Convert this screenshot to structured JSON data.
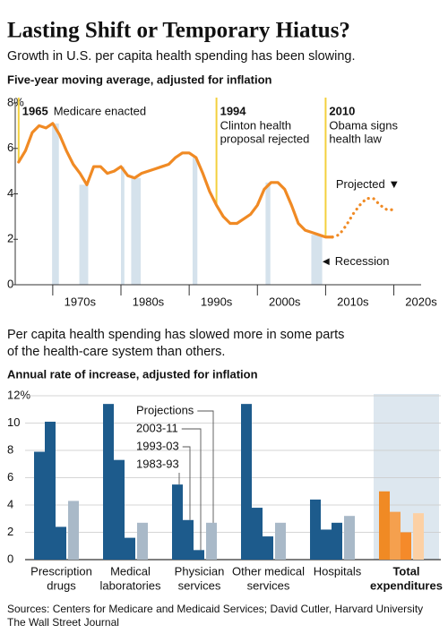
{
  "header": {
    "title": "Lasting Shift or Temporary Hiatus?",
    "subtitle": "Growth in U.S. per capita health spending has been slowing."
  },
  "chart_data": [
    {
      "type": "line",
      "subtitle": "Five-year moving average, adjusted for inflation",
      "x": [
        1965,
        1966,
        1967,
        1968,
        1969,
        1970,
        1971,
        1972,
        1973,
        1974,
        1975,
        1976,
        1977,
        1978,
        1979,
        1980,
        1981,
        1982,
        1983,
        1984,
        1985,
        1986,
        1987,
        1988,
        1989,
        1990,
        1991,
        1992,
        1993,
        1994,
        1995,
        1996,
        1997,
        1998,
        1999,
        2000,
        2001,
        2002,
        2003,
        2004,
        2005,
        2006,
        2007,
        2008,
        2009,
        2010,
        2011,
        2012,
        2013,
        2014,
        2015,
        2016,
        2017,
        2018,
        2019,
        2020
      ],
      "series": [
        {
          "color": "#f08a24",
          "style": "solid",
          "values": [
            5.4,
            5.9,
            6.7,
            7.0,
            6.9,
            7.1,
            6.6,
            5.9,
            5.3,
            4.9,
            4.4,
            5.2,
            5.2,
            4.9,
            5.0,
            5.2,
            4.8,
            4.7,
            4.9,
            5.0,
            5.1,
            5.2,
            5.3,
            5.6,
            5.8,
            5.8,
            5.6,
            4.9,
            4.1,
            3.5,
            3.0,
            2.7,
            2.7,
            2.9,
            3.1,
            3.5,
            4.2,
            4.5,
            4.5,
            4.2,
            3.5,
            2.7,
            2.4,
            2.3,
            2.2,
            2.1,
            2.1,
            null,
            null,
            null,
            null,
            null,
            null,
            null,
            null,
            null
          ]
        },
        {
          "name": "Projected ▼",
          "color": "#f08a24",
          "style": "dotted",
          "values": [
            null,
            null,
            null,
            null,
            null,
            null,
            null,
            null,
            null,
            null,
            null,
            null,
            null,
            null,
            null,
            null,
            null,
            null,
            null,
            null,
            null,
            null,
            null,
            null,
            null,
            null,
            null,
            null,
            null,
            null,
            null,
            null,
            null,
            null,
            null,
            null,
            null,
            null,
            null,
            null,
            null,
            null,
            null,
            null,
            null,
            null,
            2.1,
            2.2,
            2.6,
            3.1,
            3.5,
            3.8,
            3.8,
            3.5,
            3.3,
            3.3
          ]
        }
      ],
      "xlim": [
        1964.5,
        2024
      ],
      "ylim": [
        0,
        8
      ],
      "yticks": [
        0,
        2,
        4,
        6,
        {
          "value": 8,
          "label": "8%"
        }
      ],
      "xticks": [
        {
          "value": 1970,
          "label": "1970s"
        },
        {
          "value": 1980,
          "label": "1980s"
        },
        {
          "value": 1990,
          "label": "1990s"
        },
        {
          "value": 2000,
          "label": "2000s"
        },
        {
          "value": 2010,
          "label": "2010s"
        },
        {
          "value": 2020,
          "label": "2020s"
        }
      ],
      "grid": false,
      "annotation_color": "#f3d03e",
      "annotations": [
        {
          "x": 1965,
          "label": "1965",
          "text": [
            "Medicare enacted"
          ]
        },
        {
          "x": 1994,
          "label": "1994",
          "text": [
            "Clinton health",
            "proposal rejected"
          ]
        },
        {
          "x": 2010,
          "label": "2010",
          "text": [
            "Obama signs",
            "health law"
          ]
        }
      ],
      "recessions": {
        "label": "◄ Recession",
        "color": "#d5e2ec",
        "ranges": [
          [
            1969.9,
            1970.9
          ],
          [
            1973.9,
            1975.2
          ],
          [
            1980.0,
            1980.5
          ],
          [
            1981.5,
            1982.9
          ],
          [
            1990.5,
            1991.2
          ],
          [
            2001.2,
            2001.9
          ],
          [
            2007.9,
            2009.5
          ]
        ]
      }
    },
    {
      "type": "bar",
      "title": [
        "Per capita health spending has slowed more in some parts",
        "of the health-care system than others."
      ],
      "subtitle": "Annual rate of increase, adjusted for inflation",
      "categories": [
        [
          "Prescription",
          "drugs"
        ],
        [
          "Medical",
          "laboratories"
        ],
        [
          "Physician",
          "services"
        ],
        [
          "Other medical",
          "services"
        ],
        [
          "Hospitals"
        ],
        [
          "Total",
          "expenditures"
        ]
      ],
      "series": [
        {
          "name": "1983-93",
          "colors": [
            "#1d5b8c",
            "#1d5b8c",
            "#1d5b8c",
            "#1d5b8c",
            "#1d5b8c",
            "#f08a24"
          ],
          "values": [
            7.9,
            11.4,
            5.5,
            11.4,
            4.4,
            5.0
          ]
        },
        {
          "name": "1993-03",
          "colors": [
            "#1d5b8c",
            "#1d5b8c",
            "#1d5b8c",
            "#1d5b8c",
            "#1d5b8c",
            "#f5a04e"
          ],
          "values": [
            10.1,
            7.3,
            2.9,
            3.8,
            2.2,
            3.5
          ]
        },
        {
          "name": "2003-11",
          "colors": [
            "#1d5b8c",
            "#1d5b8c",
            "#1d5b8c",
            "#1d5b8c",
            "#1d5b8c",
            "#f58a2a"
          ],
          "values": [
            2.4,
            1.6,
            0.7,
            1.7,
            2.7,
            2.0
          ]
        },
        {
          "name": "Projections",
          "colors": [
            "#a9b9c8",
            "#a9b9c8",
            "#a9b9c8",
            "#a9b9c8",
            "#a9b9c8",
            "#fcd0a4"
          ],
          "values": [
            4.3,
            2.7,
            2.7,
            2.7,
            3.2,
            3.4
          ]
        }
      ],
      "ylim": [
        0,
        12
      ],
      "yticks": [
        0,
        2,
        4,
        6,
        8,
        10,
        {
          "value": 12,
          "label": "12%"
        }
      ],
      "grid": true,
      "highlight_index": 5,
      "highlight_background": "#dde7ef"
    }
  ],
  "footer": {
    "sources": "Sources: Centers for Medicare and Medicaid Services; David Cutler, Harvard University",
    "credit": "The Wall Street Journal"
  }
}
